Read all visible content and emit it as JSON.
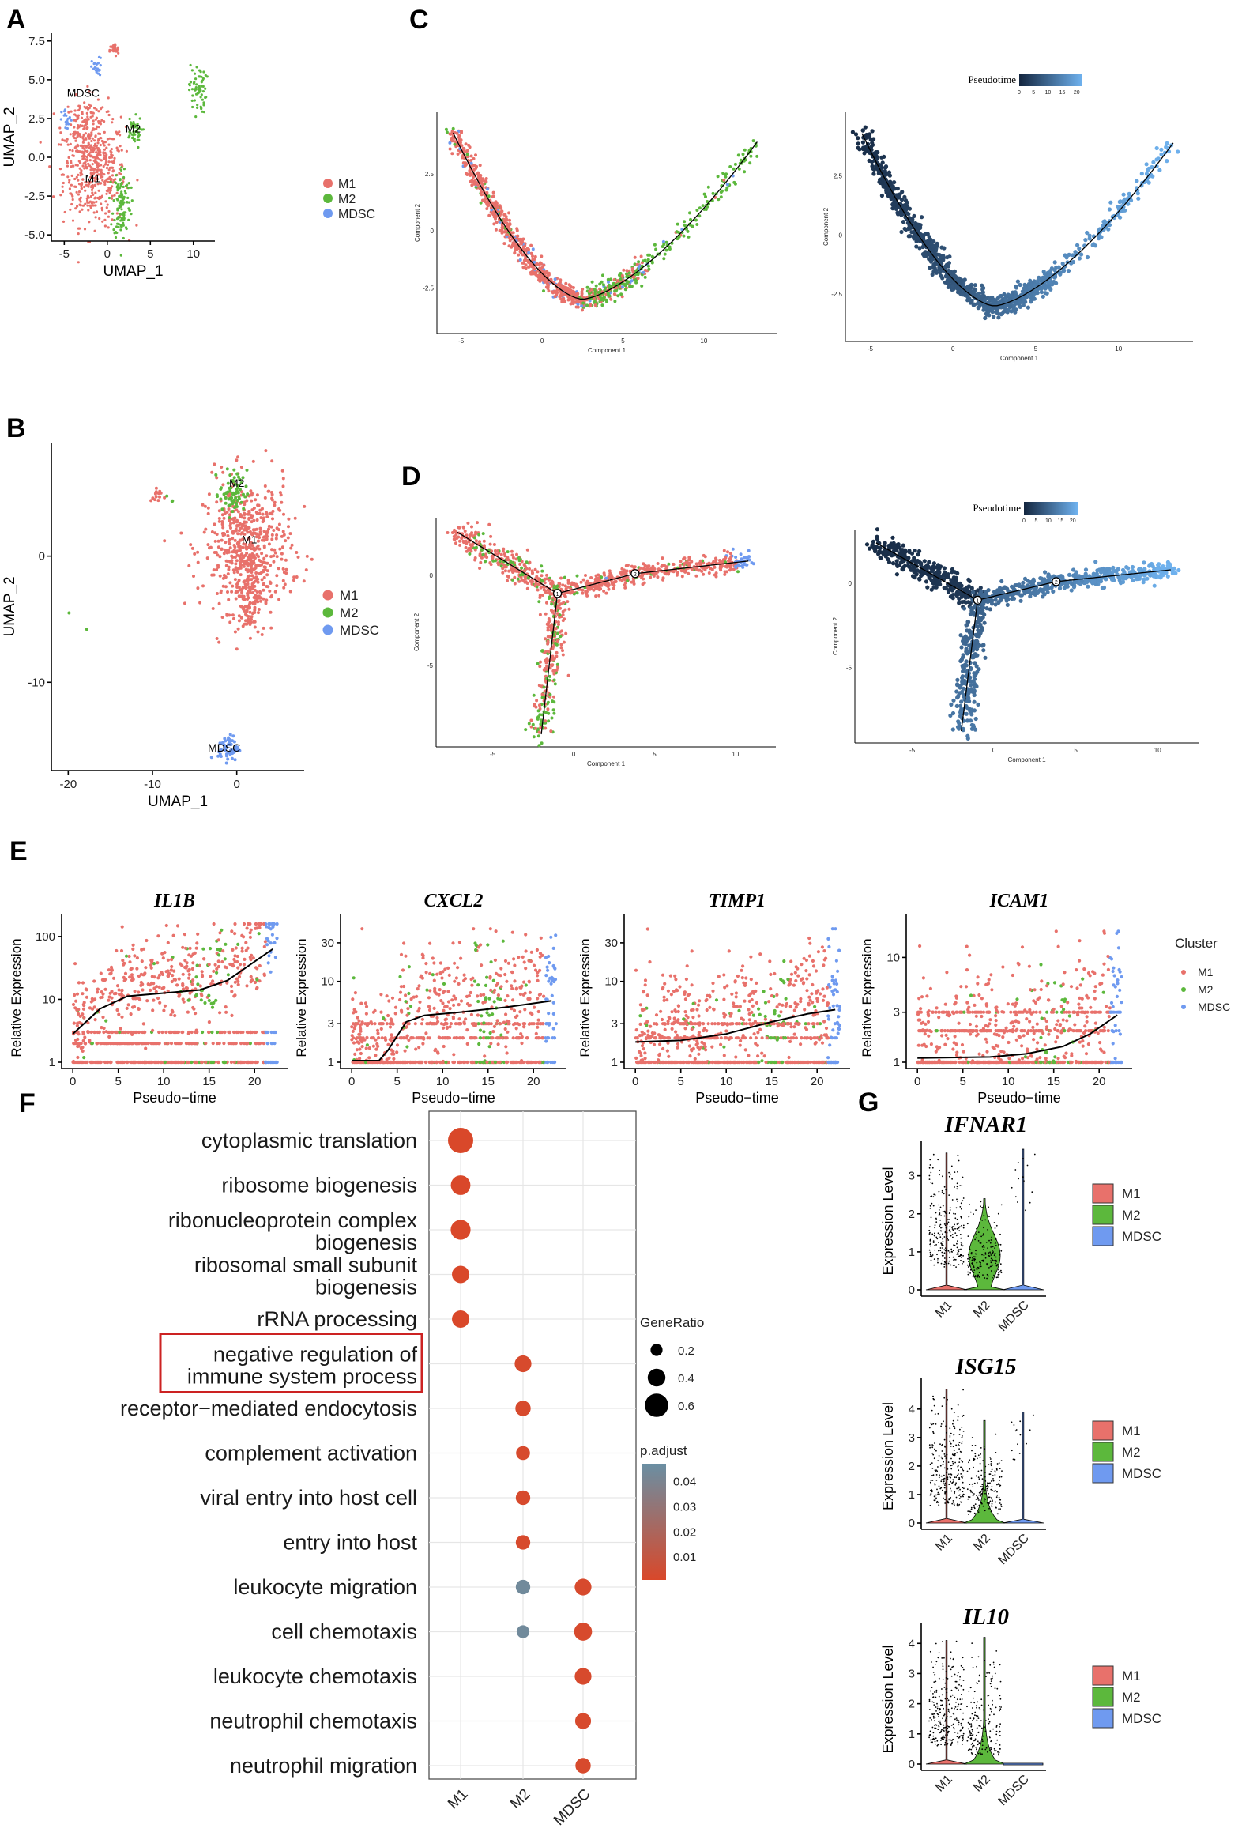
{
  "colors": {
    "M1": "#e8716b",
    "M2": "#5cb83c",
    "MDSC": "#6f9af0",
    "pseudo_dark": "#14263f",
    "pseudo_light": "#6fb2ef",
    "padjust_low": "#d9482a",
    "padjust_high": "#6a8fa3",
    "highlight_box": "#cc2222"
  },
  "panels": {
    "A": "A",
    "B": "B",
    "C": "C",
    "D": "D",
    "E": "E",
    "F": "F",
    "G": "G"
  },
  "legend_clusters": [
    "M1",
    "M2",
    "MDSC"
  ],
  "chart_data": [
    {
      "id": "A",
      "type": "scatter",
      "xlabel": "UMAP_1",
      "ylabel": "UMAP_2",
      "xticks": [
        -5,
        0,
        5,
        10
      ],
      "yticks": [
        "7.5",
        "5.0",
        "2.5",
        "0.0",
        "-2.5",
        "-5.0"
      ],
      "xlim": [
        -6.5,
        12.5
      ],
      "ylim": [
        -5.4,
        8
      ],
      "cluster_labels": [
        {
          "text": "MDSC",
          "x": -2.8,
          "y": 3.9
        },
        {
          "text": "M2",
          "x": 3.0,
          "y": 1.6
        },
        {
          "text": "M1",
          "x": -1.7,
          "y": -1.6
        }
      ],
      "legend": [
        "M1",
        "M2",
        "MDSC"
      ]
    },
    {
      "id": "B",
      "type": "scatter",
      "xlabel": "UMAP_1",
      "ylabel": "UMAP_2",
      "xticks": [
        -20,
        -10,
        0
      ],
      "yticks": [
        0,
        -10
      ],
      "xlim": [
        -22,
        8
      ],
      "ylim": [
        -17,
        9
      ],
      "cluster_labels": [
        {
          "text": "M2",
          "x": 0.0,
          "y": 5.5
        },
        {
          "text": "M1",
          "x": 1.5,
          "y": 1.0
        },
        {
          "text": "MDSC",
          "x": -1.5,
          "y": -15.5
        }
      ],
      "legend": [
        "M1",
        "M2",
        "MDSC"
      ]
    },
    {
      "id": "C-left",
      "type": "scatter",
      "xlabel": "Component 1",
      "ylabel": "Component 2",
      "xticks": [
        -5,
        0,
        5,
        10
      ],
      "yticks": [
        2.5,
        0.0,
        -2.5
      ],
      "xlim": [
        -6.5,
        14.5
      ],
      "ylim": [
        -4.5,
        5.2
      ]
    },
    {
      "id": "C-right",
      "type": "scatter",
      "xlabel": "Component 1",
      "ylabel": "Component 2",
      "xticks": [
        -5,
        0,
        5,
        10
      ],
      "yticks": [
        2.5,
        0.0,
        -2.5
      ],
      "xlim": [
        -6.5,
        14.5
      ],
      "ylim": [
        -4.5,
        5.2
      ],
      "colorbar": {
        "title": "Pseudotime",
        "ticks": [
          0,
          5,
          10,
          15,
          20
        ],
        "range": [
          0,
          22
        ]
      }
    },
    {
      "id": "D-left",
      "type": "scatter",
      "xlabel": "Component 1",
      "ylabel": "Component 2",
      "xticks": [
        -5,
        0,
        5,
        10
      ],
      "yticks": [
        0,
        -5
      ],
      "xlim": [
        -8.5,
        12.5
      ],
      "ylim": [
        -9.5,
        3.2
      ],
      "branch_points": [
        {
          "text": "1",
          "x": -1.0,
          "y": -1.0
        },
        {
          "text": "2",
          "x": 3.8,
          "y": 0.1
        }
      ]
    },
    {
      "id": "D-right",
      "type": "scatter",
      "xlabel": "Component 1",
      "ylabel": "Component 2",
      "xticks": [
        -5,
        0,
        5,
        10
      ],
      "yticks": [
        0,
        -5
      ],
      "xlim": [
        -8.5,
        12.5
      ],
      "ylim": [
        -9.5,
        3.2
      ],
      "branch_points": [
        {
          "text": "1",
          "x": -1.0,
          "y": -1.0
        },
        {
          "text": "2",
          "x": 3.8,
          "y": 0.1
        }
      ],
      "colorbar": {
        "title": "Pseudotime",
        "ticks": [
          0,
          5,
          10,
          15,
          20
        ],
        "range": [
          0,
          22
        ]
      }
    },
    {
      "id": "E",
      "type": "scatter",
      "xlabel": "Pseudo−time",
      "ylabel": "Relative Expression",
      "xticks": [
        0,
        5,
        10,
        15,
        20
      ],
      "legend_title": "Cluster",
      "legend": [
        "M1",
        "M2",
        "MDSC"
      ],
      "subplots": [
        {
          "gene": "IL1B",
          "yticks": [
            "1",
            "10",
            "100"
          ],
          "ylog": [
            0,
            2.25
          ],
          "trend": [
            [
              0,
              0.45
            ],
            [
              3,
              0.85
            ],
            [
              6,
              1.05
            ],
            [
              10,
              1.1
            ],
            [
              14,
              1.15
            ],
            [
              17,
              1.3
            ],
            [
              20,
              1.6
            ],
            [
              22,
              1.8
            ]
          ]
        },
        {
          "gene": "CXCL2",
          "yticks": [
            "1",
            "3",
            "10",
            "30"
          ],
          "ylog": [
            0,
            1.75
          ],
          "trend": [
            [
              0,
              0.02
            ],
            [
              3,
              0.02
            ],
            [
              4,
              0.15
            ],
            [
              6,
              0.5
            ],
            [
              8,
              0.58
            ],
            [
              12,
              0.62
            ],
            [
              17,
              0.68
            ],
            [
              22,
              0.76
            ]
          ]
        },
        {
          "gene": "TIMP1",
          "yticks": [
            "1",
            "3",
            "10",
            "30"
          ],
          "ylog": [
            0,
            1.75
          ],
          "trend": [
            [
              0,
              0.25
            ],
            [
              5,
              0.27
            ],
            [
              10,
              0.35
            ],
            [
              15,
              0.5
            ],
            [
              19,
              0.6
            ],
            [
              22,
              0.65
            ]
          ]
        },
        {
          "gene": "ICAM1",
          "yticks": [
            "1",
            "3",
            "10"
          ],
          "ylog": [
            0,
            1.35
          ],
          "trend": [
            [
              0,
              0.04
            ],
            [
              8,
              0.05
            ],
            [
              12,
              0.08
            ],
            [
              16,
              0.15
            ],
            [
              19,
              0.27
            ],
            [
              22,
              0.45
            ]
          ]
        }
      ]
    },
    {
      "id": "F",
      "type": "scatter",
      "title": "",
      "xlabel": "",
      "ylabel": "",
      "categories": [
        "M1",
        "M2",
        "MDSC"
      ],
      "terms": [
        "cytoplasmic translation",
        "ribosome biogenesis",
        "ribonucleoprotein complex biogenesis",
        "ribosomal small subunit biogenesis",
        "rRNA processing",
        "negative regulation of immune system process",
        "receptor−mediated endocytosis",
        "complement activation",
        "viral entry into host cell",
        "entry into host",
        "leukocyte migration",
        "cell chemotaxis",
        "leukocyte chemotaxis",
        "neutrophil chemotaxis",
        "neutrophil migration"
      ],
      "term_lines": [
        [
          "cytoplasmic translation"
        ],
        [
          "ribosome biogenesis"
        ],
        [
          "ribonucleoprotein complex",
          "biogenesis"
        ],
        [
          "ribosomal small subunit",
          "biogenesis"
        ],
        [
          "rRNA processing"
        ],
        [
          "negative regulation of",
          "immune system process"
        ],
        [
          "receptor−mediated endocytosis"
        ],
        [
          "complement activation"
        ],
        [
          "viral entry into host cell"
        ],
        [
          "entry into host"
        ],
        [
          "leukocyte migration"
        ],
        [
          "cell chemotaxis"
        ],
        [
          "leukocyte chemotaxis"
        ],
        [
          "neutrophil chemotaxis"
        ],
        [
          "neutrophil migration"
        ]
      ],
      "highlighted_term": "negative regulation of immune system process",
      "points": [
        {
          "term": 0,
          "cat": "M1",
          "gene_ratio": 0.5,
          "p_adjust": 0.001
        },
        {
          "term": 1,
          "cat": "M1",
          "gene_ratio": 0.3,
          "p_adjust": 0.001
        },
        {
          "term": 2,
          "cat": "M1",
          "gene_ratio": 0.31,
          "p_adjust": 0.001
        },
        {
          "term": 3,
          "cat": "M1",
          "gene_ratio": 0.22,
          "p_adjust": 0.001
        },
        {
          "term": 4,
          "cat": "M1",
          "gene_ratio": 0.22,
          "p_adjust": 0.001
        },
        {
          "term": 5,
          "cat": "M2",
          "gene_ratio": 0.2,
          "p_adjust": 0.002
        },
        {
          "term": 6,
          "cat": "M2",
          "gene_ratio": 0.15,
          "p_adjust": 0.002
        },
        {
          "term": 7,
          "cat": "M2",
          "gene_ratio": 0.1,
          "p_adjust": 0.002
        },
        {
          "term": 8,
          "cat": "M2",
          "gene_ratio": 0.12,
          "p_adjust": 0.002
        },
        {
          "term": 9,
          "cat": "M2",
          "gene_ratio": 0.12,
          "p_adjust": 0.002
        },
        {
          "term": 10,
          "cat": "M2",
          "gene_ratio": 0.12,
          "p_adjust": 0.045
        },
        {
          "term": 11,
          "cat": "M2",
          "gene_ratio": 0.06,
          "p_adjust": 0.045
        },
        {
          "term": 10,
          "cat": "MDSC",
          "gene_ratio": 0.2,
          "p_adjust": 0.002
        },
        {
          "term": 11,
          "cat": "MDSC",
          "gene_ratio": 0.24,
          "p_adjust": 0.002
        },
        {
          "term": 12,
          "cat": "MDSC",
          "gene_ratio": 0.2,
          "p_adjust": 0.002
        },
        {
          "term": 13,
          "cat": "MDSC",
          "gene_ratio": 0.17,
          "p_adjust": 0.002
        },
        {
          "term": 14,
          "cat": "MDSC",
          "gene_ratio": 0.15,
          "p_adjust": 0.002
        }
      ],
      "size_legend": {
        "title": "GeneRatio",
        "values": [
          0.2,
          0.4,
          0.6
        ]
      },
      "color_legend": {
        "title": "p.adjust",
        "ticks": [
          0.04,
          0.03,
          0.02,
          0.01
        ],
        "range": [
          0.001,
          0.048
        ]
      }
    },
    {
      "id": "G",
      "type": "scatter",
      "ylabel": "Expression Level",
      "categories": [
        "M1",
        "M2",
        "MDSC"
      ],
      "legend": [
        "M1",
        "M2",
        "MDSC"
      ],
      "subplots": [
        {
          "gene": "IFNAR1",
          "yticks": [
            0,
            1,
            2,
            3
          ],
          "ymax": 3.7,
          "maxes": [
            3.6,
            2.4,
            3.7
          ]
        },
        {
          "gene": "ISG15",
          "yticks": [
            0,
            1,
            2,
            3,
            4
          ],
          "ymax": 4.8,
          "maxes": [
            4.7,
            3.6,
            3.9
          ]
        },
        {
          "gene": "IL10",
          "yticks": [
            0,
            1,
            2,
            3,
            4
          ],
          "ymax": 4.4,
          "maxes": [
            4.1,
            4.2,
            0.05
          ]
        }
      ]
    }
  ]
}
